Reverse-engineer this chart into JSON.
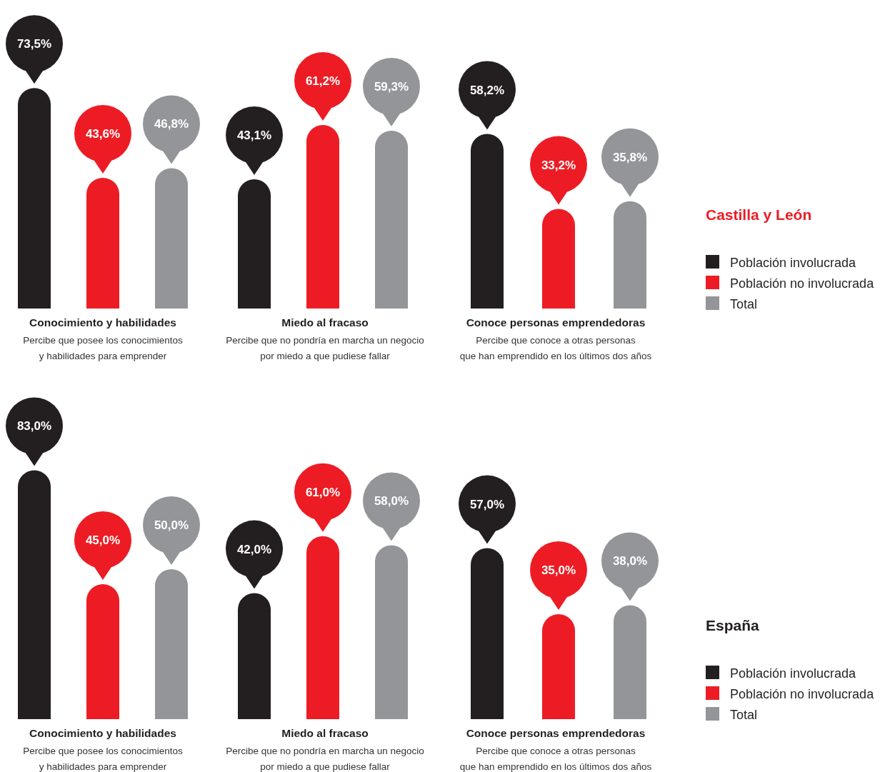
{
  "chart_data": [
    {
      "type": "bar",
      "legend_title": "Castilla y León",
      "legend": "right",
      "categories": [
        "Conocimiento y habilidades\nPercibe que posee los conocimientos\ny habilidades para emprender",
        "Miedo al fracaso\nPercibe que no pondría en marcha un negocio\npor miedo a que pudiese fallar",
        "Conoce personas emprendedoras\nPercibe que conoce a otras personas\nque han emprendido en los últimos dos años"
      ],
      "series": [
        {
          "name": "Población involucrada",
          "color": "#231f20",
          "values": [
            73.5,
            43.1,
            58.2
          ],
          "value_labels": [
            "73,5%",
            "43,1%",
            "58,2%"
          ]
        },
        {
          "name": "Población no involucrada",
          "color": "#ed1c24",
          "values": [
            43.6,
            61.2,
            33.2
          ],
          "value_labels": [
            "43,6%",
            "61,2%",
            "33,2%"
          ]
        },
        {
          "name": "Total",
          "color": "#939598",
          "values": [
            46.8,
            59.3,
            35.8
          ],
          "value_labels": [
            "46,8%",
            "59,3%",
            "35,8%"
          ]
        }
      ]
    },
    {
      "type": "bar",
      "legend_title": "España",
      "legend": "right",
      "categories": [
        "Conocimiento y habilidades\nPercibe que posee los conocimientos\ny habilidades para emprender",
        "Miedo al fracaso\nPercibe que no pondría en marcha un negocio\npor miedo a que pudiese fallar",
        "Conoce personas emprendedoras\nPercibe que conoce a otras personas\nque han emprendido en los últimos dos años"
      ],
      "series": [
        {
          "name": "Población involucrada",
          "color": "#231f20",
          "values": [
            83.0,
            42.0,
            57.0
          ],
          "value_labels": [
            "83,0%",
            "42,0%",
            "57,0%"
          ]
        },
        {
          "name": "Población no involucrada",
          "color": "#ed1c24",
          "values": [
            45.0,
            61.0,
            35.0
          ],
          "value_labels": [
            "45,0%",
            "61,0%",
            "35,0%"
          ]
        },
        {
          "name": "Total",
          "color": "#939598",
          "values": [
            50.0,
            58.0,
            38.0
          ],
          "value_labels": [
            "50,0%",
            "58,0%",
            "38,0%"
          ]
        }
      ]
    }
  ]
}
